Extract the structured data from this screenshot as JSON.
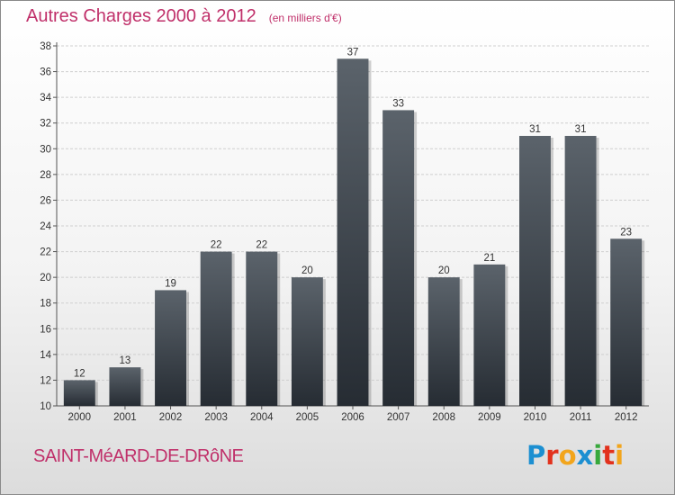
{
  "title": "Autres Charges 2000 à 2012",
  "subtitle": "(en milliers d'€)",
  "footer": {
    "city": "SAINT-MéARD-DE-DRôNE",
    "logo_text": "Proxiti",
    "logo_letters": [
      {
        "ch": "P",
        "color": "#1c8fd1"
      },
      {
        "ch": "r",
        "color": "#e2321d"
      },
      {
        "ch": "o",
        "color": "#f2a51c"
      },
      {
        "ch": "x",
        "color": "#1c8fd1"
      },
      {
        "ch": "i",
        "color": "#38a83c"
      },
      {
        "ch": "t",
        "color": "#e2321d"
      },
      {
        "ch": "i",
        "color": "#f2a51c"
      }
    ]
  },
  "chart_data": {
    "type": "bar",
    "title": "Autres Charges 2000 à 2012",
    "subtitle": "(en milliers d'€)",
    "categories": [
      "2000",
      "2001",
      "2002",
      "2003",
      "2004",
      "2005",
      "2006",
      "2007",
      "2008",
      "2009",
      "2010",
      "2011",
      "2012"
    ],
    "values": [
      12,
      13,
      19,
      22,
      22,
      20,
      37,
      33,
      20,
      21,
      31,
      31,
      23
    ],
    "ylim": [
      10,
      38
    ],
    "yticks": [
      10,
      12,
      14,
      16,
      18,
      20,
      22,
      24,
      26,
      28,
      30,
      32,
      34,
      36,
      38
    ],
    "grid": true,
    "bar_color_top": "#5b636b",
    "bar_color_bottom": "#262c33",
    "title_color": "#c0306a"
  }
}
